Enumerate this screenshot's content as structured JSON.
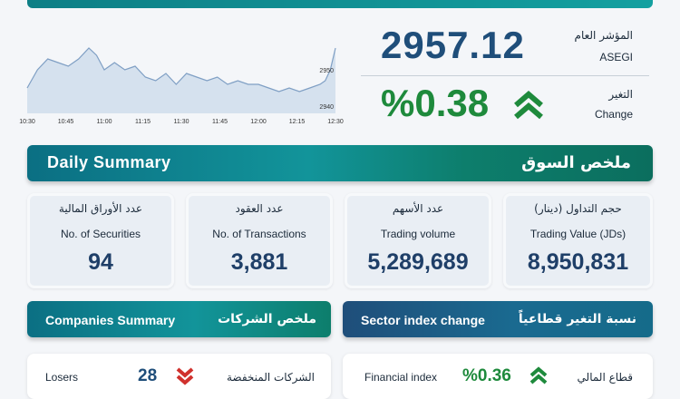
{
  "header": {
    "index_label_ar": "المؤشر العام",
    "index_label_en": "ASEGI",
    "index_value": "2957.12",
    "change_label_ar": "التغير",
    "change_label_en": "Change",
    "change_value": "%0.38"
  },
  "chart_data": {
    "type": "line",
    "x": [
      630,
      634,
      638,
      642,
      646,
      650,
      654,
      657,
      660,
      664,
      668,
      672,
      676,
      680,
      684,
      688,
      692,
      696,
      700,
      704,
      708,
      712,
      716,
      720,
      724,
      728,
      732,
      736,
      740,
      744,
      746,
      748,
      750
    ],
    "series": [
      {
        "color": "#7f9fc4",
        "fill": "#d5e1ee",
        "values": [
          2945,
          2950,
          2953,
          2952,
          2951,
          2953,
          2956,
          2954,
          2950,
          2952,
          2950,
          2951,
          2948,
          2947,
          2949,
          2946,
          2949,
          2948,
          2947,
          2948,
          2946,
          2947,
          2946,
          2946,
          2945,
          2944,
          2945,
          2944,
          2945,
          2946,
          2947,
          2950,
          2956
        ]
      }
    ],
    "xlim": [
      630,
      750
    ],
    "ylim": [
      2938,
      2958
    ],
    "xticks": [
      {
        "value": 630,
        "label": "10:30"
      },
      {
        "value": 645,
        "label": "10:45"
      },
      {
        "value": 660,
        "label": "11:00"
      },
      {
        "value": 675,
        "label": "11:15"
      },
      {
        "value": 690,
        "label": "11:30"
      },
      {
        "value": 705,
        "label": "11:45"
      },
      {
        "value": 720,
        "label": "12:00"
      },
      {
        "value": 735,
        "label": "12:15"
      },
      {
        "value": 750,
        "label": "12:30"
      }
    ],
    "yticks": [
      2940,
      2950
    ]
  },
  "daily_summary": {
    "title_en": "Daily Summary",
    "title_ar": "ملخص السوق",
    "cards": [
      {
        "label_ar": "عدد الأوراق المالية",
        "label_en": "No. of Securities",
        "value": "94"
      },
      {
        "label_ar": "عدد العقود",
        "label_en": "No. of Transactions",
        "value": "3,881"
      },
      {
        "label_ar": "عدد الأسهم",
        "label_en": "Trading volume",
        "value": "5,289,689"
      },
      {
        "label_ar": "حجم التداول (دينار)",
        "label_en": "Trading Value (JDs)",
        "value": "8,950,831"
      }
    ]
  },
  "companies_summary": {
    "title_en": "Companies Summary",
    "title_ar": "ملخص الشركات",
    "rows": [
      {
        "label_en": "Losers",
        "value": "28",
        "label_ar": "الشركات المنخفضة"
      }
    ]
  },
  "sector_change": {
    "title_en": "Sector index change",
    "title_ar": "نسبة التغير قطاعياً",
    "rows": [
      {
        "label_en": "Financial index",
        "value": "%0.36",
        "label_ar": "قطاع المالي"
      }
    ]
  }
}
